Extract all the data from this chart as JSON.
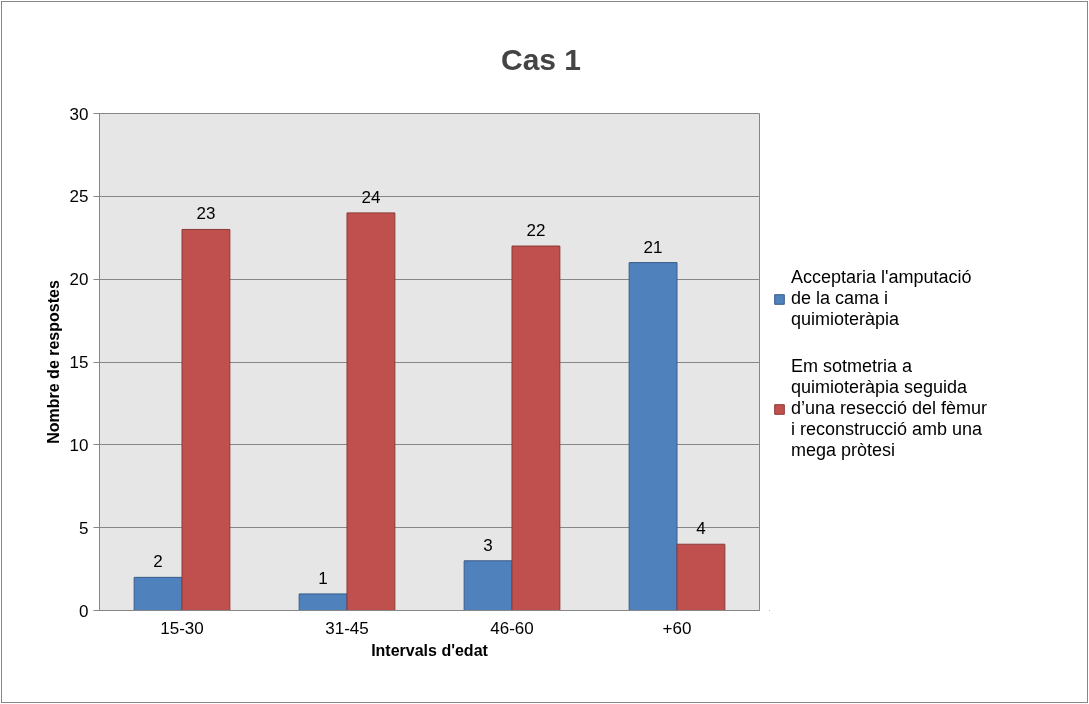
{
  "chart_data": {
    "type": "bar",
    "title": "Cas 1",
    "xlabel": "Intervals d'edat",
    "ylabel": "Nombre de respostes",
    "categories": [
      "15-30",
      "31-45",
      "46-60",
      "+60"
    ],
    "series": [
      {
        "name": "Acceptaria l'amputació de la cama i quimioteràpia",
        "color": "#4f81bd",
        "values": [
          2,
          1,
          3,
          21
        ]
      },
      {
        "name": "Em sotmetria a quimioteràpia seguida d’una resecció del fèmur i reconstrucció amb una mega pròtesi",
        "color": "#c0504d",
        "values": [
          23,
          24,
          22,
          4
        ]
      }
    ],
    "ylim": [
      0,
      30
    ],
    "yticks": [
      0,
      5,
      10,
      15,
      20,
      25,
      30
    ],
    "grid": "y",
    "legend": "right",
    "data_labels": true
  }
}
